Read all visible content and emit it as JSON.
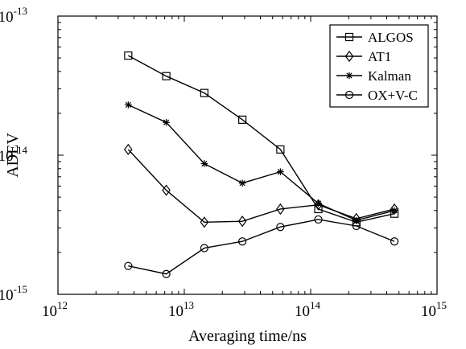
{
  "chart_data": {
    "type": "line",
    "title": "",
    "xlabel": "Averaging time/ns",
    "ylabel": "ADEV",
    "xscale": "log",
    "yscale": "log",
    "xlim": [
      1000000000000.0,
      1000000000000000.0
    ],
    "ylim": [
      1e-15,
      1e-13
    ],
    "xticks": [
      {
        "value": 1000000000000.0,
        "base": "10",
        "exp": "12"
      },
      {
        "value": 10000000000000.0,
        "base": "10",
        "exp": "13"
      },
      {
        "value": 100000000000000.0,
        "base": "10",
        "exp": "14"
      },
      {
        "value": 1000000000000000.0,
        "base": "10",
        "exp": "15"
      }
    ],
    "yticks": [
      {
        "value": 1e-15,
        "base": "10",
        "exp": "-15"
      },
      {
        "value": 1e-14,
        "base": "10",
        "exp": "-14"
      },
      {
        "value": 1e-13,
        "base": "10",
        "exp": "-13"
      }
    ],
    "grid": false,
    "legend_position": "top-right",
    "x": [
      3600000000000.0,
      7200000000000.0,
      14400000000000.0,
      28800000000000.0,
      57600000000000.0,
      115000000000000.0,
      230000000000000.0,
      460000000000000.0
    ],
    "series": [
      {
        "name": "ALGOS",
        "marker": "square",
        "values": [
          5.2e-14,
          3.7e-14,
          2.8e-14,
          1.8e-14,
          1.1e-14,
          4.1e-15,
          3.3e-15,
          3.8e-15
        ]
      },
      {
        "name": "AT1",
        "marker": "diamond",
        "values": [
          1.1e-14,
          5.6e-15,
          3.3e-15,
          3.35e-15,
          4.1e-15,
          4.4e-15,
          3.5e-15,
          4.1e-15
        ]
      },
      {
        "name": "Kalman",
        "marker": "asterisk",
        "values": [
          2.3e-14,
          1.72e-14,
          8.7e-15,
          6.3e-15,
          7.6e-15,
          4.5e-15,
          3.4e-15,
          4e-15
        ]
      },
      {
        "name": "OX+V-C",
        "marker": "circle",
        "values": [
          1.6e-15,
          1.4e-15,
          2.15e-15,
          2.4e-15,
          3.05e-15,
          3.45e-15,
          3.1e-15,
          2.4e-15
        ]
      }
    ]
  }
}
